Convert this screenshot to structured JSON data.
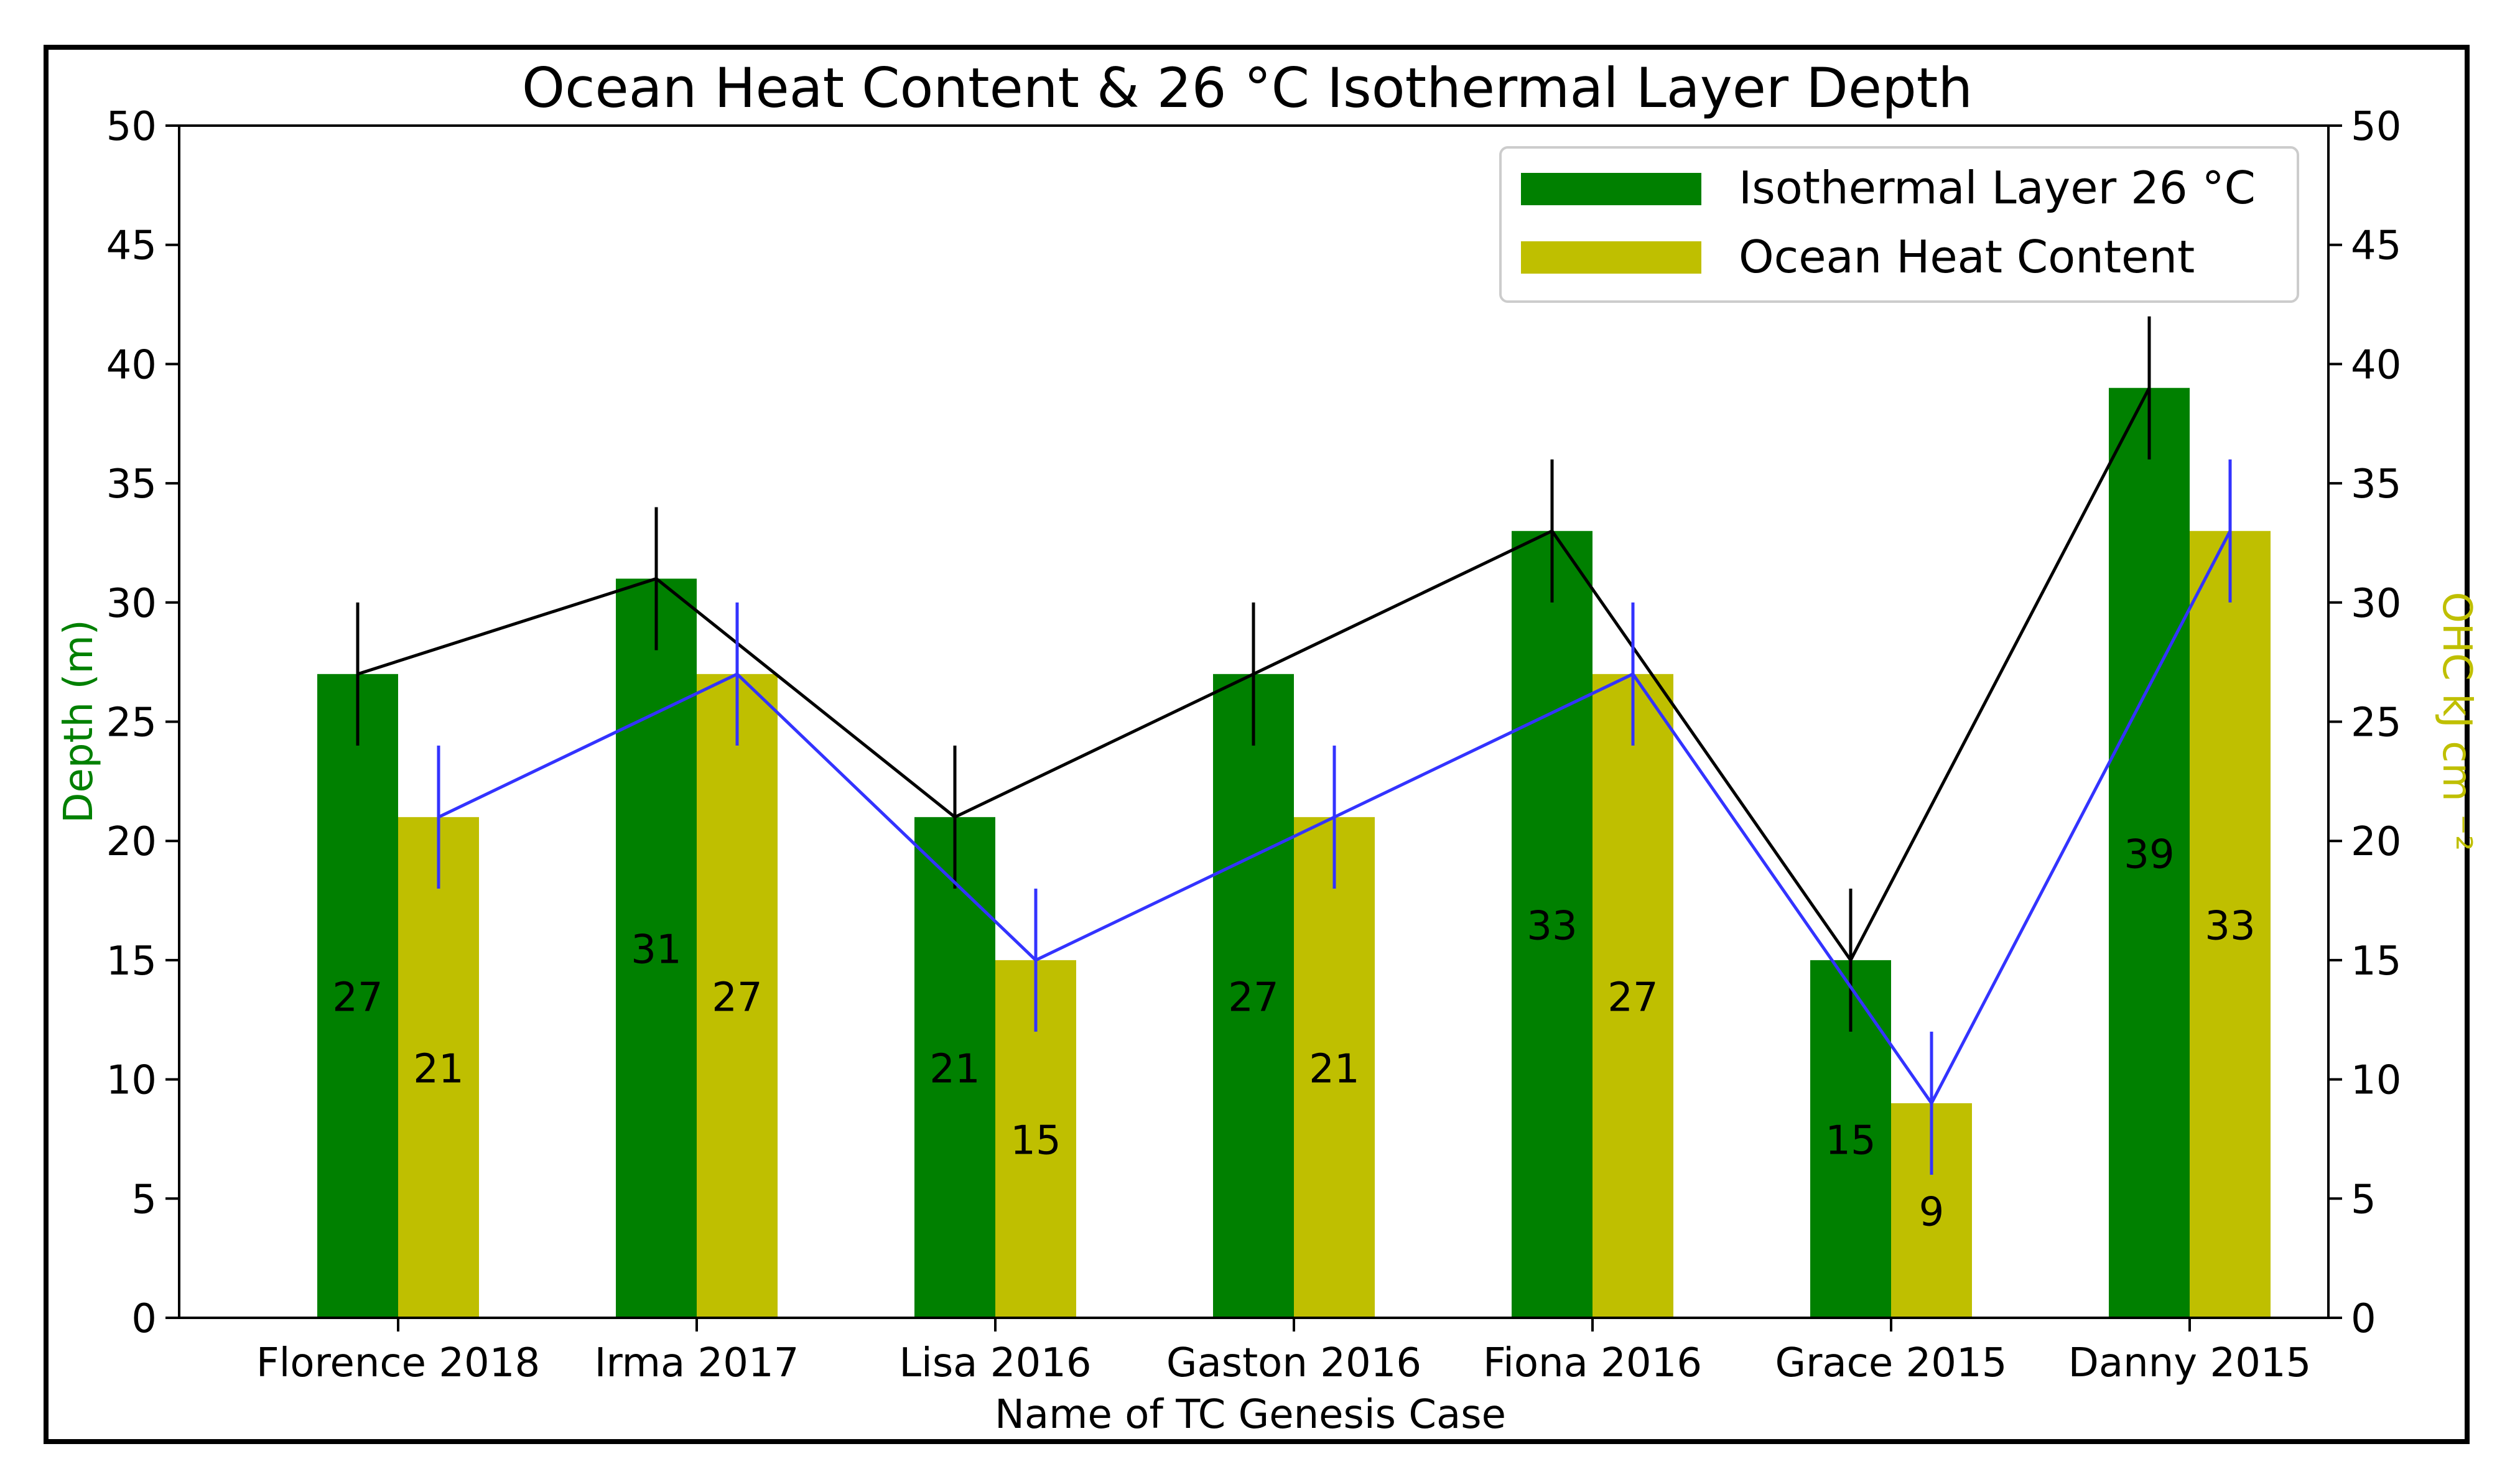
{
  "chart_data": {
    "type": "bar",
    "title": "Ocean Heat Content & 26 °C Isothermal Layer Depth",
    "xlabel": "Name of TC Genesis Case",
    "ylabel": "Depth (m)",
    "ylabel_right": "OHC kJ cm ⁻²",
    "ylim": [
      0,
      50
    ],
    "ylim_right": [
      0,
      50
    ],
    "yticks": [
      "0",
      "5",
      "10",
      "15",
      "20",
      "25",
      "30",
      "35",
      "40",
      "45",
      "50"
    ],
    "categories": [
      "Florence 2018",
      "Irma 2017",
      "Lisa 2016",
      "Gaston 2016",
      "Fiona 2016",
      "Grace 2015",
      "Danny 2015"
    ],
    "series": [
      {
        "name": "Isothermal Layer 26 °C",
        "axis": "left",
        "color": "#008000",
        "line_color": "#000000",
        "values": [
          27,
          31,
          21,
          27,
          33,
          15,
          39
        ],
        "labels": [
          "27",
          "31",
          "21",
          "27",
          "33",
          "15",
          "39"
        ],
        "error": 3
      },
      {
        "name": "Ocean Heat Content",
        "axis": "right",
        "color": "#bfbf00",
        "line_color": "#3333ff",
        "values": [
          21,
          27,
          15,
          21,
          27,
          9,
          33
        ],
        "labels": [
          "21",
          "27",
          "15",
          "21",
          "27",
          "9",
          "33"
        ],
        "error": 3
      }
    ],
    "legend": "top-right",
    "grid": false,
    "colors": {
      "ylabel": "#008000",
      "ylabel_right": "#bfbf00"
    }
  }
}
